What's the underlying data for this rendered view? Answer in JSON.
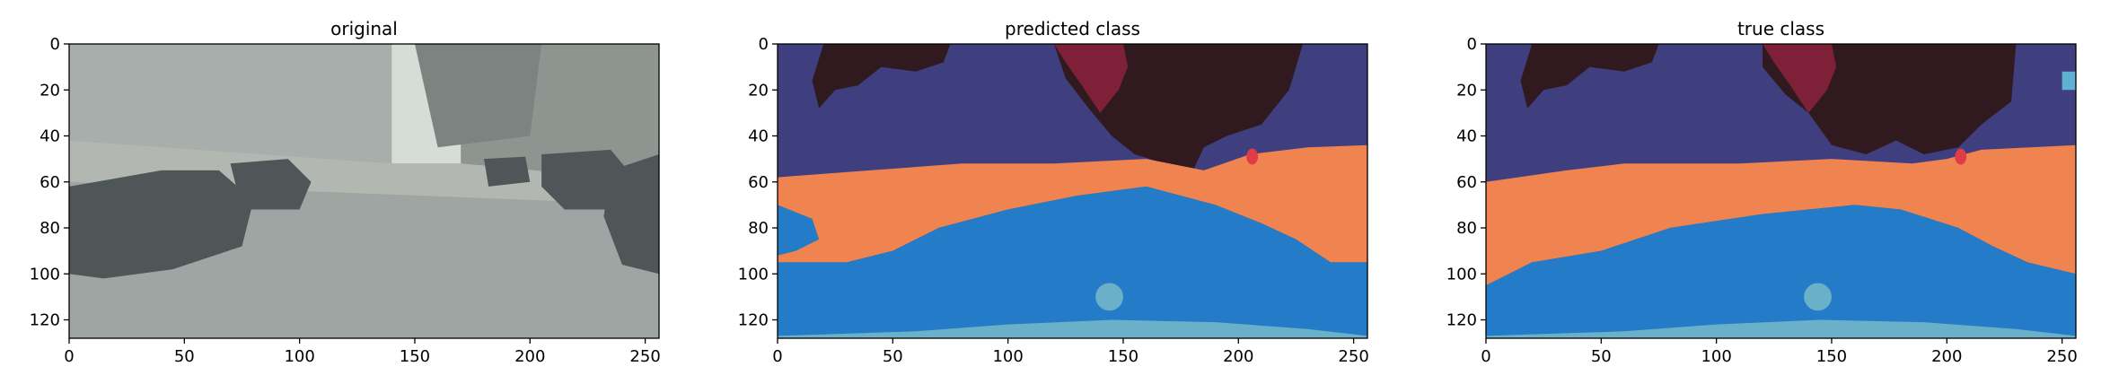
{
  "chart_data": [
    {
      "type": "heatmap",
      "title": "original",
      "xlabel": "",
      "ylabel": "",
      "xlim": [
        0,
        256
      ],
      "ylim": [
        128,
        0
      ],
      "x_ticks": [
        0,
        50,
        100,
        150,
        200,
        250
      ],
      "y_ticks": [
        0,
        20,
        40,
        60,
        80,
        100,
        120
      ],
      "image_kind": "street-scene photo",
      "colors": {
        "sky": "#d6ddd7",
        "building_left": "#a8aeab",
        "building_right": "#8e9490",
        "trees": "#7b8480",
        "road": "#9fa5a2",
        "cars": "#4f5658",
        "sidewalk": "#b3b7b1"
      }
    },
    {
      "type": "heatmap",
      "title": "predicted class",
      "xlabel": "",
      "ylabel": "",
      "xlim": [
        0,
        256
      ],
      "ylim": [
        128,
        0
      ],
      "x_ticks": [
        0,
        50,
        100,
        150,
        200,
        250
      ],
      "y_ticks": [
        0,
        20,
        40,
        60,
        80,
        100,
        120
      ],
      "colors": {
        "building": "#3f3f7f",
        "vegetation": "#301a1f",
        "sky": "#7e2038",
        "vehicle": "#f08450",
        "road": "#247cc8",
        "sidewalk": "#6ab0c8",
        "person": "#e03c46",
        "sign": "#5fb1d2"
      }
    },
    {
      "type": "heatmap",
      "title": "true class",
      "xlabel": "",
      "ylabel": "",
      "xlim": [
        0,
        256
      ],
      "ylim": [
        128,
        0
      ],
      "x_ticks": [
        0,
        50,
        100,
        150,
        200,
        250
      ],
      "y_ticks": [
        0,
        20,
        40,
        60,
        80,
        100,
        120
      ],
      "colors": {
        "building": "#3f3f7f",
        "vegetation": "#301a1f",
        "sky": "#7e2038",
        "vehicle": "#f08450",
        "road": "#247cc8",
        "sidewalk": "#6ab0c8",
        "person": "#e03c46",
        "sign": "#5fb1d2"
      }
    }
  ]
}
